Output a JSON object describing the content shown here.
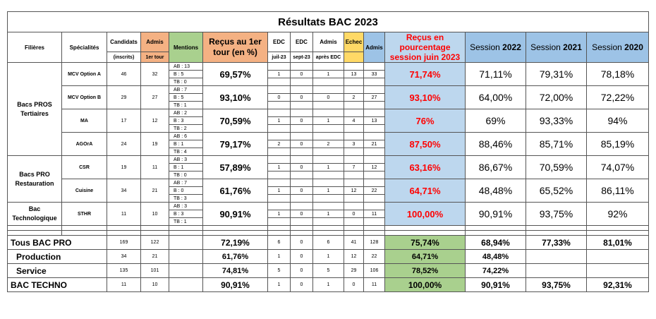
{
  "title": "Résultats BAC 2023",
  "headers": {
    "filieres": "Filières",
    "specialites": "Spécialités",
    "candidats": "Candidats",
    "candidats_sub": "(inscrits)",
    "admis": "Admis",
    "admis_sub": "1er tour",
    "mentions": "Mentions",
    "recus_1er_tour": "Reçus au 1er tour (en %)",
    "edc1": "EDC",
    "edc1_sub": "juil-23",
    "edc2": "EDC",
    "edc2_sub": "sept-23",
    "admis2": "Admis",
    "admis2_sub": "après EDC",
    "echec": "Echec",
    "admis3": "Admis",
    "recus_pct": "Reçus en pourcentage session juin 2023",
    "session_label": "Session",
    "y2022": "2022",
    "y2021": "2021",
    "y2020": "2020"
  },
  "groups": {
    "tertiaires": "Bacs PROS Tertiaires",
    "restauration": "Bacs PRO Restauration",
    "techno": "Bac Technologique"
  },
  "rows": [
    {
      "spec": "MCV Option A",
      "cand": "46",
      "admis": "32",
      "m1": "AB : 13",
      "m2": "B : 5",
      "m3": "TB : 0",
      "recus": "69,57%",
      "edc1": "1",
      "edc2": "0",
      "admis2": "1",
      "echec": "13",
      "admis3": "33",
      "pct": "71,74%",
      "s22": "71,11%",
      "s21": "79,31%",
      "s20": "78,18%"
    },
    {
      "spec": "MCV Option B",
      "cand": "29",
      "admis": "27",
      "m1": "AB : 7",
      "m2": "B : 5",
      "m3": "TB : 1",
      "recus": "93,10%",
      "edc1": "0",
      "edc2": "0",
      "admis2": "0",
      "echec": "2",
      "admis3": "27",
      "pct": "93,10%",
      "s22": "64,00%",
      "s21": "72,00%",
      "s20": "72,22%"
    },
    {
      "spec": "MA",
      "cand": "17",
      "admis": "12",
      "m1": "AB : 2",
      "m2": "B : 3",
      "m3": "TB : 2",
      "recus": "70,59%",
      "edc1": "1",
      "edc2": "0",
      "admis2": "1",
      "echec": "4",
      "admis3": "13",
      "pct": "76%",
      "s22": "69%",
      "s21": "93,33%",
      "s20": "94%"
    },
    {
      "spec": "AGOrA",
      "cand": "24",
      "admis": "19",
      "m1": "AB : 6",
      "m2": "B : 1",
      "m3": "TB : 4",
      "recus": "79,17%",
      "edc1": "2",
      "edc2": "0",
      "admis2": "2",
      "echec": "3",
      "admis3": "21",
      "pct": "87,50%",
      "s22": "88,46%",
      "s21": "85,71%",
      "s20": "85,19%"
    },
    {
      "spec": "CSR",
      "cand": "19",
      "admis": "11",
      "m1": "AB : 3",
      "m2": "B : 1",
      "m3": "TB : 0",
      "recus": "57,89%",
      "edc1": "1",
      "edc2": "0",
      "admis2": "1",
      "echec": "7",
      "admis3": "12",
      "pct": "63,16%",
      "s22": "86,67%",
      "s21": "70,59%",
      "s20": "74,07%"
    },
    {
      "spec": "Cuisine",
      "cand": "34",
      "admis": "21",
      "m1": "AB : 7",
      "m2": "B : 0",
      "m3": "TB : 3",
      "recus": "61,76%",
      "edc1": "1",
      "edc2": "0",
      "admis2": "1",
      "echec": "12",
      "admis3": "22",
      "pct": "64,71%",
      "s22": "48,48%",
      "s21": "65,52%",
      "s20": "86,11%"
    },
    {
      "spec": "STHR",
      "cand": "11",
      "admis": "10",
      "m1": "AB : 3",
      "m2": "B : 3",
      "m3": "TB : 1",
      "recus": "90,91%",
      "edc1": "1",
      "edc2": "0",
      "admis2": "1",
      "echec": "0",
      "admis3": "11",
      "pct": "100,00%",
      "s22": "90,91%",
      "s21": "93,75%",
      "s20": "92%"
    }
  ],
  "totals": [
    {
      "label": "Tous BAC PRO",
      "cand": "169",
      "admis": "122",
      "recus": "72,19%",
      "edc1": "6",
      "edc2": "0",
      "admis2": "6",
      "echec": "41",
      "admis3": "128",
      "pct": "75,74%",
      "s22": "68,94%",
      "s21": "77,33%",
      "s20": "81,01%"
    },
    {
      "label": "Production",
      "cand": "34",
      "admis": "21",
      "recus": "61,76%",
      "edc1": "1",
      "edc2": "0",
      "admis2": "1",
      "echec": "12",
      "admis3": "22",
      "pct": "64,71%",
      "s22": "48,48%",
      "s21": "",
      "s20": ""
    },
    {
      "label": "Service",
      "cand": "135",
      "admis": "101",
      "recus": "74,81%",
      "edc1": "5",
      "edc2": "0",
      "admis2": "5",
      "echec": "29",
      "admis3": "106",
      "pct": "78,52%",
      "s22": "74,22%",
      "s21": "",
      "s20": ""
    },
    {
      "label": "BAC TECHNO",
      "cand": "11",
      "admis": "10",
      "recus": "90,91%",
      "edc1": "1",
      "edc2": "0",
      "admis2": "1",
      "echec": "0",
      "admis3": "11",
      "pct": "100,00%",
      "s22": "90,91%",
      "s21": "93,75%",
      "s20": "92,31%"
    }
  ]
}
